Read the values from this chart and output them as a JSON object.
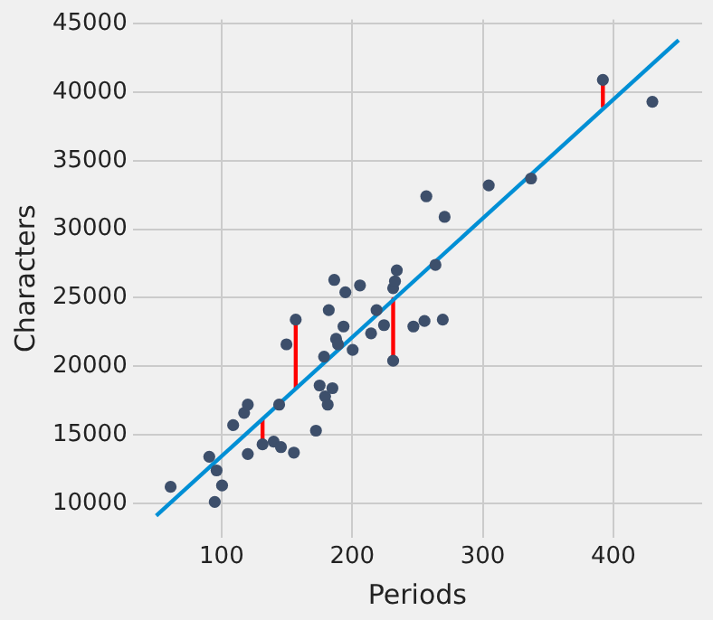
{
  "chart_data": {
    "type": "scatter",
    "xlabel": "Periods",
    "ylabel": "Characters",
    "xlim": [
      32,
      468
    ],
    "ylim": [
      7500,
      45300
    ],
    "xticks": [
      100,
      200,
      300,
      400
    ],
    "yticks": [
      10000,
      15000,
      20000,
      25000,
      30000,
      35000,
      40000,
      45000
    ],
    "grid": true,
    "legend": false,
    "series": [
      {
        "type": "scatter",
        "color": "#3d4f6b",
        "marker": "circle",
        "x": [
          61,
          90.6,
          96.2,
          100.4,
          94.8,
          108.9,
          117.3,
          120.1,
          120.1,
          131.4,
          139.9,
          144.1,
          145.5,
          149.7,
          156.8,
          155.4,
          172.3,
          175.1,
          179.3,
          181.3,
          184.9,
          178.5,
          182.1,
          186.3,
          187.7,
          189.2,
          193.4,
          194.8,
          200.4,
          206,
          214.5,
          218.7,
          224.4,
          231.4,
          231.4,
          232.8,
          234.2,
          246.9,
          255.4,
          256.8,
          263.8,
          270.8,
          269.4,
          304.6,
          337,
          392,
          429.9
        ],
        "values": [
          11200,
          13400,
          12400,
          11300,
          10100,
          15700,
          16600,
          17200,
          13600,
          14300,
          14500,
          17200,
          14100,
          21600,
          23400,
          13700,
          15300,
          18600,
          17800,
          17200,
          18400,
          20700,
          24100,
          26300,
          22000,
          21600,
          22900,
          25400,
          21200,
          25900,
          22400,
          24100,
          23000,
          20400,
          25700,
          26200,
          27000,
          22900,
          23300,
          32400,
          27400,
          30900,
          23400,
          33200,
          33700,
          40900,
          39300
        ]
      },
      {
        "type": "line",
        "color": "#008fd5",
        "marker": "none",
        "x": [
          50,
          450
        ],
        "values": [
          9100,
          43800
        ]
      },
      {
        "type": "line",
        "color": "#ff0000",
        "marker": "none",
        "x": [
          131.4,
          131.4
        ],
        "values": [
          16100,
          14300
        ]
      },
      {
        "type": "line",
        "color": "#ff0000",
        "marker": "none",
        "x": [
          156.8,
          156.8
        ],
        "values": [
          18300,
          23400
        ]
      },
      {
        "type": "line",
        "color": "#ff0000",
        "marker": "none",
        "x": [
          231.4,
          231.4
        ],
        "values": [
          24900,
          20400
        ]
      },
      {
        "type": "line",
        "color": "#ff0000",
        "marker": "none",
        "x": [
          392,
          392
        ],
        "values": [
          38900,
          40900
        ]
      }
    ]
  }
}
